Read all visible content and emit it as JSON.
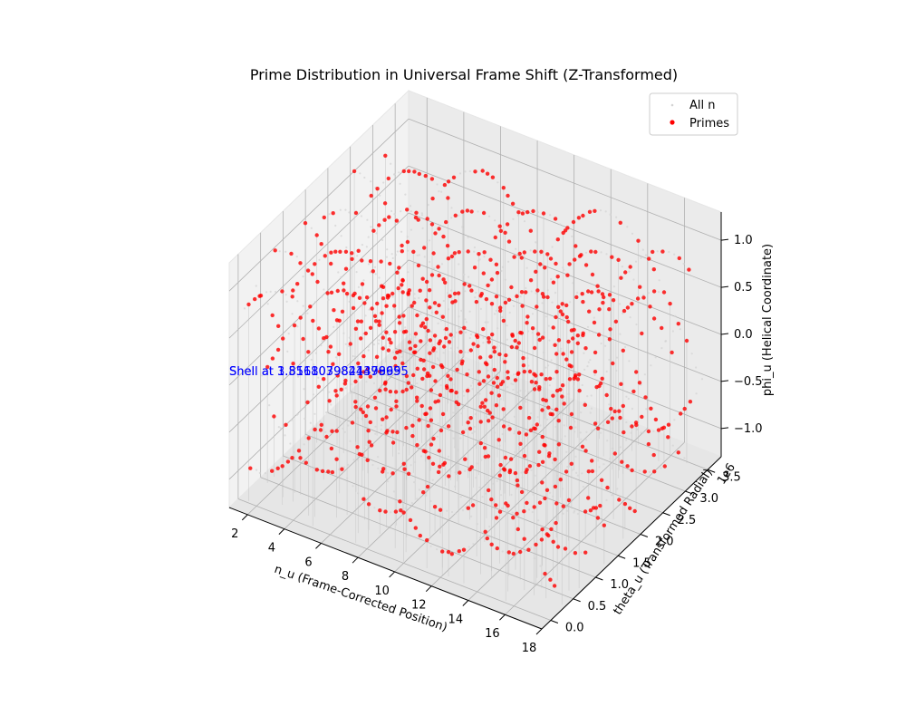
{
  "chart_data": {
    "type": "scatter",
    "title": "Prime Distribution in Universal Frame Shift (Z-Transformed)",
    "xlabel": "n_u (Frame-Corrected Position)",
    "ylabel": "theta_u (Transformed Radial)",
    "zlabel": "phi_u (Helical Coordinate)",
    "y_offset_label": "1e6",
    "xlim": [
      1,
      18
    ],
    "ylim": [
      -0.2,
      3.8
    ],
    "zlim": [
      -1.3,
      1.3
    ],
    "x_ticks": [
      2,
      4,
      6,
      8,
      10,
      12,
      14,
      16,
      18
    ],
    "x_tick_labels": [
      "2",
      "4",
      "6",
      "8",
      "10",
      "12",
      "14",
      "16",
      "18"
    ],
    "y_ticks": [
      0.0,
      0.5,
      1.0,
      1.5,
      2.0,
      2.5,
      3.0,
      3.5
    ],
    "y_tick_labels": [
      "0.0",
      "0.5",
      "1.0",
      "1.5",
      "2.0",
      "2.5",
      "3.0",
      "3.5"
    ],
    "z_ticks": [
      -1.0,
      -0.5,
      0.0,
      0.5,
      1.0
    ],
    "z_tick_labels": [
      "−1.0",
      "−0.5",
      "0.0",
      "0.5",
      "1.0"
    ],
    "grid": true,
    "legend_position": "top-right",
    "series": [
      {
        "name": "All n",
        "color": "#d3d3d3",
        "marker": "small-dot"
      },
      {
        "name": "Primes",
        "color": "#ff0000",
        "marker": "dot"
      }
    ],
    "annotations": [
      {
        "text": "Shell at 1.8518039841499695",
        "color": "#0000ff"
      },
      {
        "text": "Shell at 3.516107982437895",
        "color": "#0000ff"
      }
    ]
  }
}
